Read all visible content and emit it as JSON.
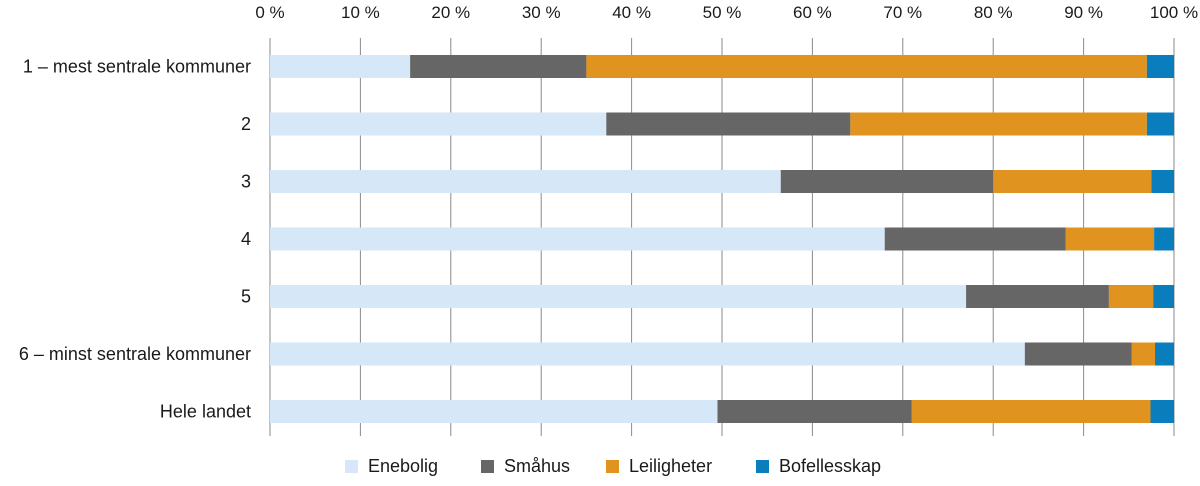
{
  "chart_data": {
    "type": "bar",
    "orientation": "horizontal",
    "stacked": true,
    "title": "",
    "xlabel": "",
    "ylabel": "",
    "xlim": [
      0,
      100
    ],
    "x_ticks": [
      "0 %",
      "10 %",
      "20 %",
      "30 %",
      "40 %",
      "50 %",
      "60 %",
      "70 %",
      "80 %",
      "90 %",
      "100 %"
    ],
    "x_tick_values": [
      0,
      10,
      20,
      30,
      40,
      50,
      60,
      70,
      80,
      90,
      100
    ],
    "x_axis_position": "top",
    "grid": true,
    "legend_position": "bottom",
    "categories": [
      "1 – mest sentrale kommuner",
      "2",
      "3",
      "4",
      "5",
      "6 – minst sentrale kommuner",
      "Hele landet"
    ],
    "series": [
      {
        "name": "Enebolig",
        "color": "#d6e7f8",
        "values": [
          15.5,
          37.2,
          56.5,
          68.0,
          77.0,
          83.5,
          49.5
        ]
      },
      {
        "name": "Småhus",
        "color": "#666666",
        "values": [
          19.5,
          27.0,
          23.5,
          20.0,
          15.8,
          11.8,
          21.5
        ]
      },
      {
        "name": "Leiligheter",
        "color": "#e0931e",
        "values": [
          62.0,
          32.8,
          17.5,
          9.8,
          4.9,
          2.6,
          26.4
        ]
      },
      {
        "name": "Bofellesskap",
        "color": "#0a7dbd",
        "values": [
          3.0,
          3.0,
          2.5,
          2.2,
          2.3,
          2.1,
          2.6
        ]
      }
    ]
  }
}
